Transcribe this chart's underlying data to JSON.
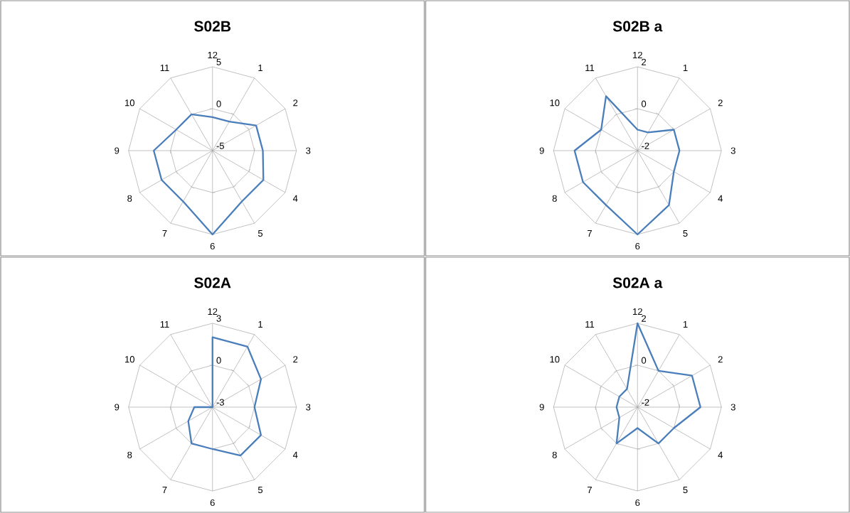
{
  "chart_data": [
    {
      "type": "radar",
      "title": "S02B",
      "categories": [
        "12",
        "1",
        "2",
        "3",
        "4",
        "5",
        "6",
        "7",
        "8",
        "9",
        "10",
        "11"
      ],
      "grid": true,
      "ylim": [
        -5,
        5
      ],
      "yticks": [
        -5,
        0,
        5
      ],
      "series": [
        {
          "color": "#4a7ebb",
          "values": [
            -1,
            -1,
            1,
            1,
            2,
            2,
            5,
            2,
            2,
            2,
            0,
            0
          ]
        }
      ]
    },
    {
      "type": "radar",
      "title": "S02B a",
      "categories": [
        "12",
        "1",
        "2",
        "3",
        "4",
        "5",
        "6",
        "7",
        "8",
        "9",
        "10",
        "11"
      ],
      "grid": true,
      "ylim": [
        -2,
        2
      ],
      "yticks": [
        -2,
        0,
        2
      ],
      "series": [
        {
          "color": "#4a7ebb",
          "values": [
            -1,
            -1,
            0,
            0,
            0,
            1,
            2,
            1,
            1,
            1,
            0,
            1
          ]
        }
      ]
    },
    {
      "type": "radar",
      "title": "S02A",
      "categories": [
        "12",
        "1",
        "2",
        "3",
        "4",
        "5",
        "6",
        "7",
        "8",
        "9",
        "10",
        "11"
      ],
      "grid": true,
      "ylim": [
        -3,
        3
      ],
      "yticks": [
        -3,
        0,
        3
      ],
      "series": [
        {
          "color": "#4a7ebb",
          "values": [
            2,
            2,
            1,
            0,
            1,
            1,
            0,
            0,
            -1,
            -1.7,
            -3,
            -3
          ]
        }
      ]
    },
    {
      "type": "radar",
      "title": "S02A a",
      "categories": [
        "12",
        "1",
        "2",
        "3",
        "4",
        "5",
        "6",
        "7",
        "8",
        "9",
        "10",
        "11"
      ],
      "grid": true,
      "ylim": [
        -2,
        2
      ],
      "yticks": [
        -2,
        0,
        2
      ],
      "series": [
        {
          "color": "#4a7ebb",
          "values": [
            2,
            0,
            1,
            1,
            0,
            0,
            -1,
            0,
            -1,
            -1,
            -1,
            -1
          ]
        }
      ]
    }
  ]
}
